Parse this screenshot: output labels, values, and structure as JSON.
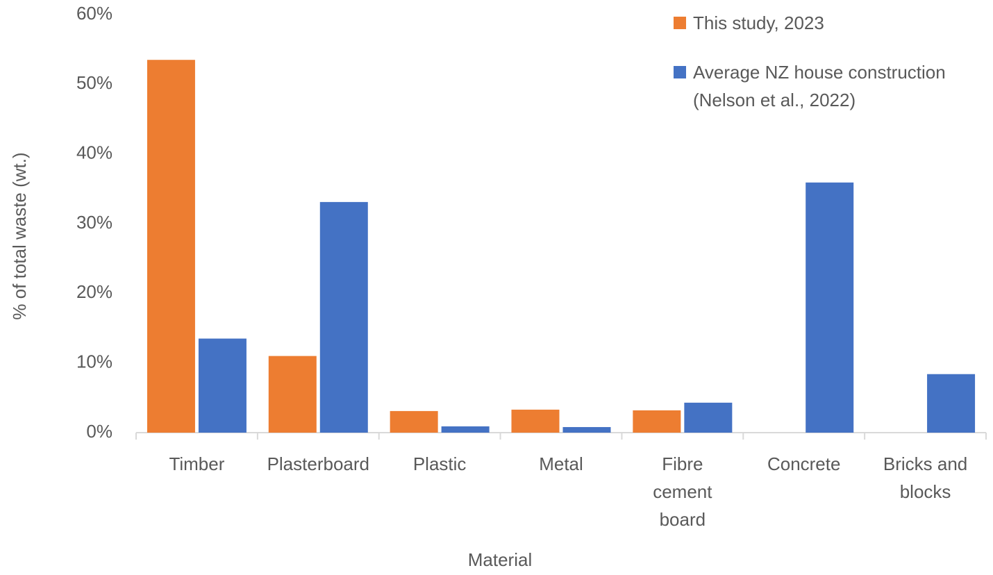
{
  "chart_data": {
    "type": "bar",
    "x_label": "Material",
    "y_label": "% of total waste (wt.)",
    "categories": [
      "Timber",
      "Plasterboard",
      "Plastic",
      "Metal",
      "Fibre\ncement\nboard",
      "Concrete",
      "Bricks and\nblocks"
    ],
    "series": [
      {
        "name": "This study, 2023",
        "color": "#ed7d31",
        "values": [
          53.5,
          11.0,
          3.1,
          3.3,
          3.2,
          0,
          0
        ]
      },
      {
        "name": "Average NZ house construction (Nelson et al., 2022)",
        "color": "#4472c4",
        "values": [
          13.5,
          33.1,
          0.9,
          0.8,
          4.3,
          35.9,
          8.4
        ]
      }
    ],
    "ylim": [
      0,
      60
    ],
    "yticks": [
      {
        "value": 0,
        "label": "0%"
      },
      {
        "value": 10,
        "label": "10%"
      },
      {
        "value": 20,
        "label": "20%"
      },
      {
        "value": 30,
        "label": "30%"
      },
      {
        "value": 40,
        "label": "40%"
      },
      {
        "value": 50,
        "label": "50%"
      },
      {
        "value": 60,
        "label": "60%"
      }
    ],
    "grid": false,
    "legend": "top-right"
  }
}
